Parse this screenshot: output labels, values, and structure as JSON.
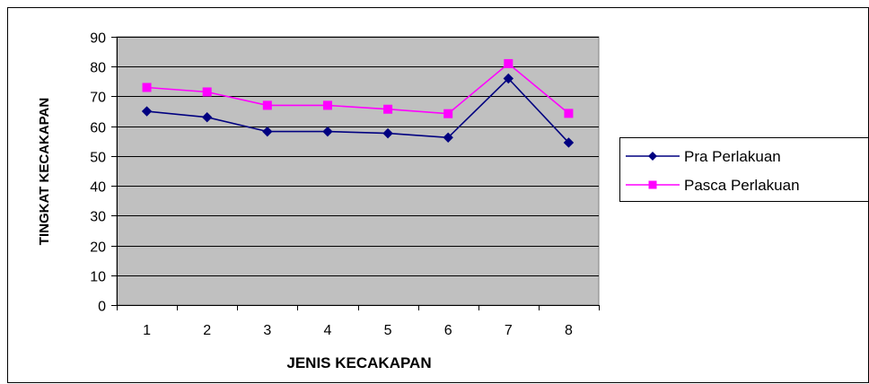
{
  "chart_data": {
    "type": "line",
    "title": "",
    "xlabel": "JENIS KECAKAPAN",
    "ylabel": "TINGKAT KECAKAPAN",
    "categories": [
      "1",
      "2",
      "3",
      "4",
      "5",
      "6",
      "7",
      "8"
    ],
    "ylim": [
      0,
      90
    ],
    "yticks": [
      "0",
      "10",
      "20",
      "30",
      "40",
      "50",
      "60",
      "70",
      "80",
      "90"
    ],
    "grid": "horizontal",
    "plot_background": "#c0c0c0",
    "legend_position": "right",
    "series": [
      {
        "name": "Pra Perlakuan",
        "color": "#000080",
        "marker": "diamond",
        "values": [
          65,
          63,
          58.2,
          58.2,
          57.6,
          56.2,
          76,
          54.5
        ]
      },
      {
        "name": "Pasca Perlakuan",
        "color": "#ff00ff",
        "marker": "square",
        "values": [
          73,
          71.5,
          67,
          67,
          65.7,
          64.2,
          81,
          64.3
        ]
      }
    ]
  }
}
